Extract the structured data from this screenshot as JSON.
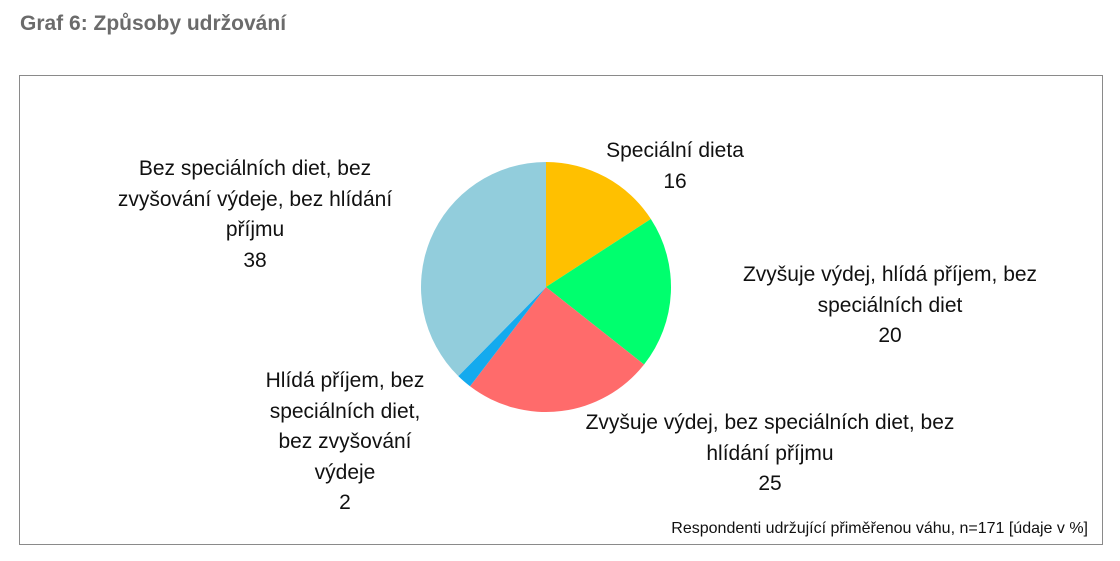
{
  "heading": "Graf 6: Způsoby udržování",
  "chart_data": {
    "type": "pie",
    "title": "",
    "categories": [
      "Speciální dieta",
      "Zvyšuje výdej, hlídá příjem, bez speciálních diet",
      "Zvyšuje výdej, bez speciálních diet, bez hlídání příjmu",
      "Hlídá příjem, bez speciálních diet, bez zvyšování výdeje",
      "Bez speciálních diet, bez zvyšování výdeje, bez hlídání příjmu"
    ],
    "values": [
      16,
      20,
      25,
      2,
      38
    ],
    "colors": [
      "#ffc000",
      "#00ff6e",
      "#ff6b6b",
      "#14aaee",
      "#92cddc"
    ],
    "labels": [
      {
        "lines": [
          "Speciální dieta"
        ],
        "value": "16"
      },
      {
        "lines": [
          "Zvyšuje výdej, hlídá příjem, bez",
          "speciálních diet"
        ],
        "value": "20"
      },
      {
        "lines": [
          "Zvyšuje výdej, bez speciálních diet, bez",
          "hlídání příjmu"
        ],
        "value": "25"
      },
      {
        "lines": [
          "Hlídá příjem, bez",
          "speciálních diet,",
          "bez zvyšování",
          "výdeje"
        ],
        "value": "2"
      },
      {
        "lines": [
          "Bez speciálních diet, bez",
          "zvyšování výdeje, bez hlídání",
          "příjmu"
        ],
        "value": "38"
      }
    ],
    "legend": "none",
    "grid": false,
    "note": "Respondenti udržující přiměřenou váhu, n=171 [údaje v %]"
  }
}
